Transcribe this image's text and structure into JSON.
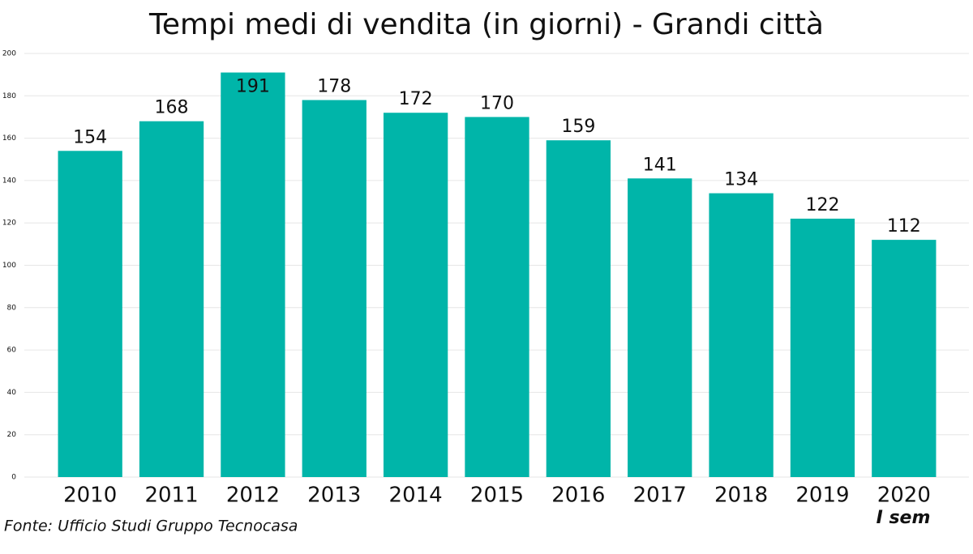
{
  "chart_data": {
    "type": "bar",
    "title": "Tempi medi di vendita (in giorni) - Grandi città",
    "categories": [
      "2010",
      "2011",
      "2012",
      "2013",
      "2014",
      "2015",
      "2016",
      "2017",
      "2018",
      "2019",
      "2020"
    ],
    "values": [
      154,
      168,
      191,
      178,
      172,
      170,
      159,
      141,
      134,
      122,
      112
    ],
    "color": "#00b5a9",
    "ylim": [
      0,
      200
    ],
    "yticks": [
      0,
      20,
      40,
      60,
      80,
      100,
      120,
      140,
      160,
      180,
      200
    ],
    "grid": true,
    "annotation": "I sem",
    "source": "Fonte: Ufficio Studi Gruppo Tecnocasa"
  }
}
